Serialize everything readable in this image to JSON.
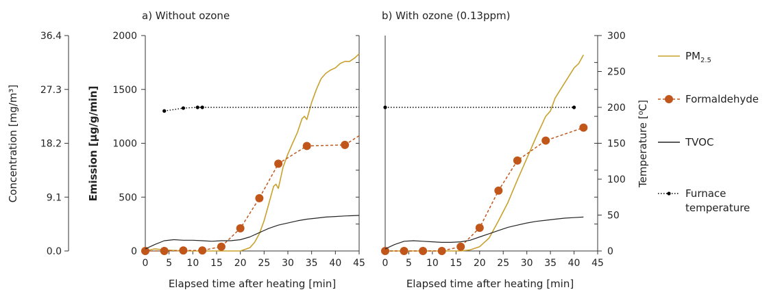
{
  "chart_data": [
    {
      "type": "line",
      "title": "a) Without ozone",
      "xlabel": "Elapsed time after heating [min]",
      "ylabel": "Emission [µg/g/min]",
      "ylabel_left": "Concentration [mg/m³]",
      "ylabel_right": "Temperature [⁰C]",
      "xlim": [
        0,
        45
      ],
      "ylim": [
        0,
        2000
      ],
      "xticks": [
        "0",
        "5",
        "10",
        "15",
        "20",
        "25",
        "30",
        "35",
        "40",
        "45"
      ],
      "yticks": [
        "0",
        "500",
        "1000",
        "1500",
        "2000"
      ],
      "conc_ticks": [
        "0.0",
        "9.1",
        "18.2",
        "27.3",
        "36.4"
      ],
      "grid": false,
      "series": [
        {
          "name": "PM2.5",
          "axis": "emission",
          "x": [
            0,
            2,
            4,
            8,
            12,
            16,
            18,
            20,
            22,
            23,
            24,
            25,
            26,
            27,
            27.5,
            28,
            29,
            30,
            31,
            32,
            33,
            33.5,
            34,
            35,
            36,
            37,
            38,
            39,
            40,
            41,
            42,
            43,
            44,
            45
          ],
          "y": [
            0,
            20,
            10,
            0,
            0,
            0,
            0,
            0,
            30,
            80,
            160,
            280,
            440,
            600,
            620,
            580,
            780,
            900,
            1000,
            1100,
            1230,
            1250,
            1220,
            1380,
            1500,
            1600,
            1650,
            1680,
            1700,
            1740,
            1760,
            1760,
            1790,
            1830
          ]
        },
        {
          "name": "Formaldehyde",
          "axis": "emission",
          "x": [
            0,
            4,
            8,
            12,
            16,
            20,
            24,
            28,
            34,
            42,
            45
          ],
          "y": [
            0,
            0,
            5,
            5,
            40,
            210,
            490,
            810,
            975,
            985,
            1070
          ]
        },
        {
          "name": "TVOC",
          "axis": "emission",
          "x": [
            0,
            2,
            4,
            6,
            8,
            10,
            12,
            14,
            16,
            18,
            20,
            22,
            24,
            26,
            28,
            30,
            32,
            34,
            36,
            38,
            40,
            42,
            45
          ],
          "y": [
            20,
            60,
            95,
            105,
            100,
            100,
            95,
            90,
            95,
            95,
            105,
            130,
            170,
            210,
            240,
            260,
            280,
            295,
            305,
            315,
            320,
            325,
            330
          ]
        },
        {
          "name": "Furnace temperature",
          "axis": "temperature",
          "x": [
            4,
            8,
            11,
            12,
            45
          ],
          "y": [
            195,
            199,
            200,
            200,
            200
          ]
        }
      ]
    },
    {
      "type": "line",
      "title": "b) With ozone (0.13ppm)",
      "xlabel": "Elapsed time after heating [min]",
      "ylabel": "",
      "ylabel_right": "Temperature [⁰C]",
      "xlim": [
        0,
        45
      ],
      "ylim": [
        0,
        2000
      ],
      "xticks": [
        "0",
        "5",
        "10",
        "15",
        "20",
        "25",
        "30",
        "35",
        "40",
        "45"
      ],
      "temp_ticks": [
        "0",
        "50",
        "100",
        "150",
        "200",
        "250",
        "300"
      ],
      "grid": false,
      "series": [
        {
          "name": "PM2.5",
          "axis": "emission",
          "x": [
            0,
            4,
            8,
            12,
            16,
            18,
            20,
            22,
            24,
            26,
            28,
            30,
            32,
            34,
            35,
            36,
            38,
            40,
            41,
            42
          ],
          "y": [
            0,
            0,
            0,
            0,
            0,
            10,
            40,
            120,
            280,
            450,
            660,
            860,
            1060,
            1250,
            1300,
            1420,
            1560,
            1700,
            1740,
            1820
          ]
        },
        {
          "name": "Formaldehyde",
          "axis": "emission",
          "x": [
            0,
            4,
            8,
            12,
            16,
            20,
            24,
            28,
            34,
            42
          ],
          "y": [
            0,
            0,
            0,
            0,
            40,
            215,
            560,
            840,
            1025,
            1145
          ]
        },
        {
          "name": "TVOC",
          "axis": "emission",
          "x": [
            0,
            2,
            4,
            6,
            8,
            10,
            12,
            14,
            16,
            18,
            20,
            22,
            24,
            26,
            28,
            30,
            32,
            34,
            36,
            38,
            40,
            42
          ],
          "y": [
            20,
            60,
            90,
            95,
            90,
            85,
            80,
            80,
            85,
            100,
            130,
            160,
            190,
            220,
            240,
            260,
            275,
            285,
            295,
            305,
            310,
            315
          ]
        },
        {
          "name": "Furnace temperature",
          "axis": "temperature",
          "x": [
            0,
            40
          ],
          "y": [
            200,
            200
          ]
        }
      ]
    }
  ],
  "legend": [
    {
      "name": "PM",
      "sub": "2.5",
      "color": "#c8a02c",
      "style": "solid"
    },
    {
      "name": "Formaldehyde",
      "sub": "",
      "color": "#c0561a",
      "style": "dashed-marker"
    },
    {
      "name": "TVOC",
      "sub": "",
      "color": "#222222",
      "style": "solid"
    },
    {
      "name": "Furnace",
      "line2": "temperature",
      "color": "#000000",
      "style": "dotted-marker"
    }
  ],
  "colors": {
    "pm25": "#c8a02c",
    "formaldehyde": "#c0561a",
    "tvoc": "#222222",
    "furnace": "#000000"
  }
}
